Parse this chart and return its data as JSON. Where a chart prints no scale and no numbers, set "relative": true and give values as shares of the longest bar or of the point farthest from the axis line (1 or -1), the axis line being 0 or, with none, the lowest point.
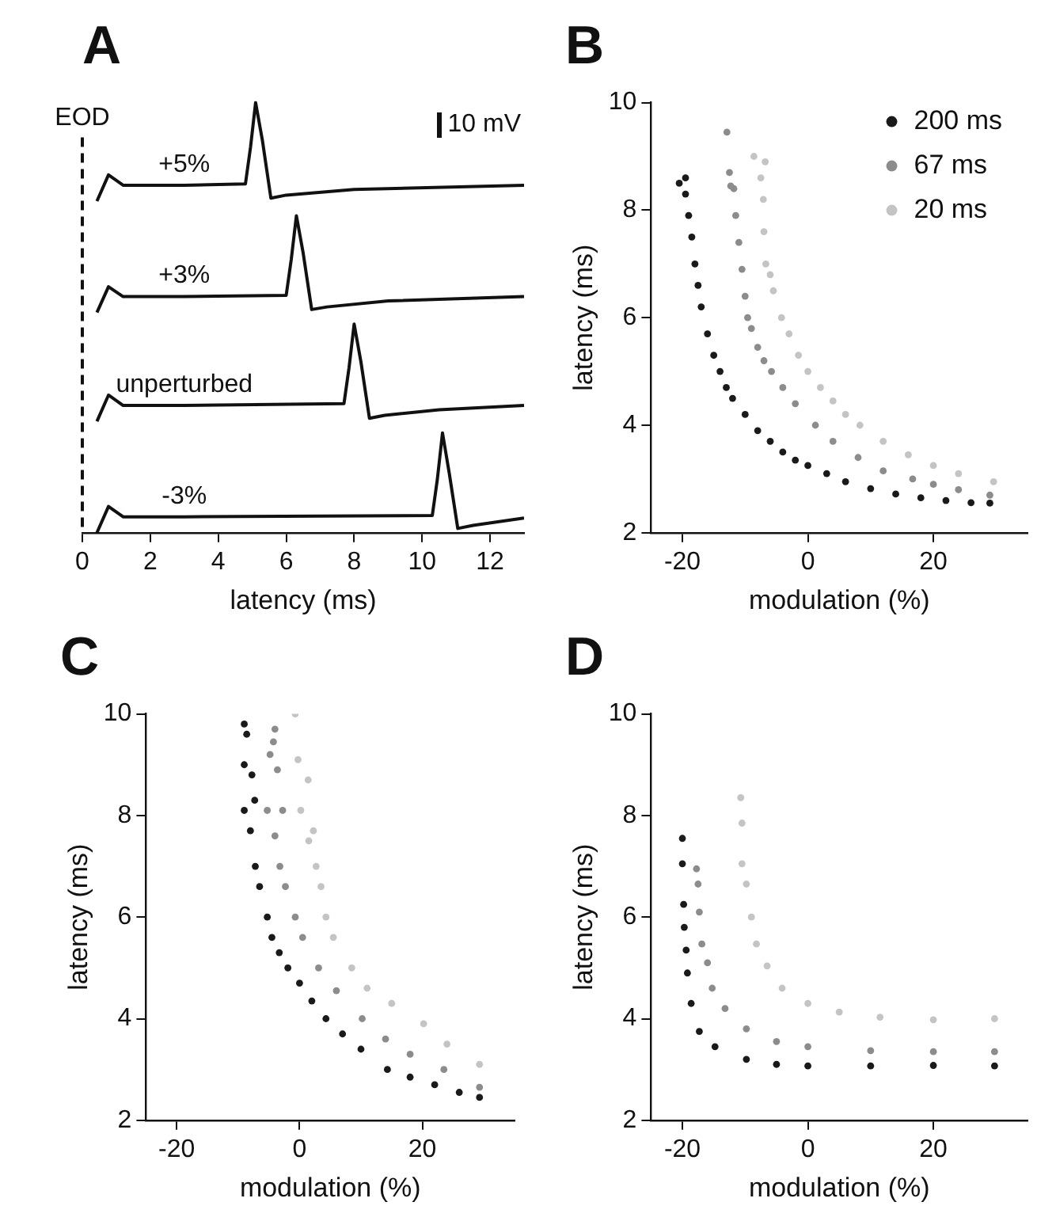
{
  "chart_data": [
    {
      "type": "line",
      "title": "A",
      "xlabel": "latency (ms)",
      "relative": true,
      "tick_labels": "x",
      "legend": false,
      "marker": "none",
      "line_style": "solid",
      "xlim": [
        0,
        13
      ],
      "xticks": [
        0,
        2,
        4,
        6,
        8,
        10,
        12
      ],
      "ref_lines": [
        {
          "axis": "x",
          "value": 0,
          "label": "EOD",
          "line_style": "dashed"
        }
      ],
      "annotations": [
        "10 mV"
      ],
      "series": [
        {
          "name": "+5%",
          "color": "#111111",
          "x": [
            0.43,
            0.77,
            1.2,
            3,
            4.8,
            4.95,
            5.1,
            5.3,
            5.55,
            6,
            8,
            13
          ],
          "values": [
            0.771,
            0.832,
            0.808,
            0.808,
            0.811,
            0.896,
            1,
            0.912,
            0.778,
            0.785,
            0.798,
            0.808
          ]
        },
        {
          "name": "+3%",
          "color": "#111111",
          "x": [
            0.43,
            0.77,
            1.2,
            3,
            6,
            6.15,
            6.3,
            6.5,
            6.75,
            7.2,
            9,
            13
          ],
          "values": [
            0.512,
            0.572,
            0.549,
            0.549,
            0.552,
            0.636,
            0.737,
            0.65,
            0.519,
            0.525,
            0.539,
            0.549
          ]
        },
        {
          "name": "unperturbed",
          "color": "#111111",
          "x": [
            0.43,
            0.77,
            1.2,
            3,
            7.7,
            7.85,
            8,
            8.2,
            8.45,
            8.9,
            10.5,
            13
          ],
          "values": [
            0.259,
            0.32,
            0.296,
            0.296,
            0.3,
            0.384,
            0.485,
            0.397,
            0.266,
            0.273,
            0.286,
            0.296
          ]
        },
        {
          "name": "-3%",
          "color": "#111111",
          "x": [
            0.43,
            0.77,
            1.2,
            3,
            10.3,
            10.45,
            10.6,
            10.8,
            11.05,
            11.5,
            13
          ],
          "values": [
            0,
            0.061,
            0.037,
            0.037,
            0.04,
            0.125,
            0.232,
            0.138,
            0.01,
            0.017,
            0.034
          ]
        }
      ]
    },
    {
      "type": "scatter",
      "title": "B",
      "xlabel": "modulation (%)",
      "ylabel": "latency (ms)",
      "legend": "top right",
      "marker": "circle",
      "xlim": [
        -25,
        35
      ],
      "xticks": [
        -20,
        0,
        20
      ],
      "ylim": [
        2,
        10
      ],
      "yticks": [
        2,
        4,
        6,
        8,
        10
      ],
      "series": [
        {
          "name": "200 ms",
          "color": "#1a1a1a",
          "x": [
            -20.5,
            -19.5,
            -19.5,
            -19,
            -18.5,
            -18,
            -17.5,
            -17,
            -16,
            -15,
            -14,
            -13,
            -12,
            -10,
            -8,
            -6,
            -4,
            -2,
            0,
            3,
            6,
            10,
            14,
            18,
            22,
            26,
            29
          ],
          "values": [
            8.5,
            8.6,
            8.3,
            7.9,
            7.5,
            7.0,
            6.6,
            6.2,
            5.7,
            5.3,
            5.0,
            4.7,
            4.5,
            4.2,
            3.9,
            3.7,
            3.5,
            3.35,
            3.25,
            3.1,
            2.95,
            2.82,
            2.72,
            2.65,
            2.6,
            2.56,
            2.55
          ]
        },
        {
          "name": "67 ms",
          "color": "#8c8c8c",
          "x": [
            -12.9,
            -12.5,
            -12.3,
            -11.8,
            -11.5,
            -11,
            -10.5,
            -10,
            -9.6,
            -9,
            -8,
            -7,
            -5.8,
            -4,
            -2,
            1.2,
            4,
            8,
            12,
            16.7,
            20,
            24,
            29
          ],
          "values": [
            9.45,
            8.7,
            8.45,
            8.4,
            7.9,
            7.4,
            6.9,
            6.4,
            6.0,
            5.8,
            5.45,
            5.2,
            5.0,
            4.7,
            4.4,
            4.0,
            3.7,
            3.4,
            3.15,
            3.0,
            2.9,
            2.8,
            2.7
          ]
        },
        {
          "name": "20 ms",
          "color": "#c4c4c4",
          "x": [
            -8.6,
            -7.5,
            -6.8,
            -7.1,
            -7,
            -6.7,
            -6,
            -5.5,
            -4.2,
            -3,
            -1.5,
            0,
            2,
            4,
            6,
            8.3,
            12,
            16,
            20,
            24,
            29.6
          ],
          "values": [
            9.0,
            8.6,
            8.9,
            8.2,
            7.6,
            7.0,
            6.8,
            6.5,
            6.0,
            5.7,
            5.3,
            5.0,
            4.7,
            4.45,
            4.2,
            4.0,
            3.7,
            3.45,
            3.25,
            3.1,
            2.95
          ]
        }
      ]
    },
    {
      "type": "scatter",
      "title": "C",
      "xlabel": "modulation (%)",
      "ylabel": "latency (ms)",
      "marker": "circle",
      "xlim": [
        -25,
        35
      ],
      "xticks": [
        -20,
        0,
        20
      ],
      "ylim": [
        2,
        10
      ],
      "yticks": [
        2,
        4,
        6,
        8,
        10
      ],
      "series": [
        {
          "color": "#1a1a1a",
          "x": [
            -9,
            -8.6,
            -9,
            -7.75,
            -7.3,
            -9,
            -8,
            -7.2,
            -6.5,
            -5.25,
            -4.5,
            -3.3,
            -1.9,
            0,
            2,
            4.3,
            7,
            10,
            14.3,
            18,
            22,
            26,
            29.3
          ],
          "values": [
            9.8,
            9.6,
            9.0,
            8.8,
            8.3,
            8.1,
            7.7,
            7.0,
            6.6,
            6.0,
            5.6,
            5.3,
            5.0,
            4.7,
            4.35,
            4.0,
            3.7,
            3.4,
            3.0,
            2.85,
            2.7,
            2.55,
            2.45
          ]
        },
        {
          "color": "#8c8c8c",
          "x": [
            -4,
            -4.25,
            -4.8,
            -3.6,
            -5.25,
            -2.75,
            -4,
            -3.2,
            -2.3,
            -0.7,
            0.5,
            3.1,
            6,
            10.2,
            14,
            18,
            23.5,
            29.3
          ],
          "values": [
            9.7,
            9.45,
            9.2,
            8.9,
            8.1,
            8.1,
            7.6,
            7.0,
            6.6,
            6.0,
            5.6,
            5.0,
            4.55,
            4.0,
            3.6,
            3.3,
            3.0,
            2.65
          ]
        },
        {
          "color": "#c4c4c4",
          "x": [
            -0.7,
            -0.25,
            1.4,
            0.2,
            2.25,
            1.5,
            2.7,
            3.5,
            4.3,
            5.5,
            8.5,
            11,
            15,
            20.2,
            24,
            29.3
          ],
          "values": [
            10.0,
            9.1,
            8.7,
            8.1,
            7.7,
            7.5,
            7.0,
            6.6,
            6.0,
            5.6,
            5.0,
            4.6,
            4.3,
            3.9,
            3.5,
            3.1
          ]
        }
      ]
    },
    {
      "type": "scatter",
      "title": "D",
      "xlabel": "modulation (%)",
      "ylabel": "latency (ms)",
      "marker": "circle",
      "xlim": [
        -25,
        35
      ],
      "xticks": [
        -20,
        0,
        20
      ],
      "ylim": [
        2,
        10
      ],
      "yticks": [
        2,
        4,
        6,
        8,
        10
      ],
      "series": [
        {
          "color": "#1a1a1a",
          "x": [
            -20,
            -20,
            -19.8,
            -19.7,
            -19.4,
            -19.2,
            -18.6,
            -17.3,
            -14.8,
            -9.8,
            -5,
            0,
            10,
            20,
            29.75
          ],
          "values": [
            7.55,
            7.05,
            6.25,
            5.8,
            5.35,
            4.9,
            4.3,
            3.75,
            3.45,
            3.2,
            3.1,
            3.07,
            3.07,
            3.08,
            3.07
          ]
        },
        {
          "color": "#8c8c8c",
          "x": [
            -17.75,
            -17.5,
            -17.3,
            -16.9,
            -16,
            -15.25,
            -13.2,
            -9.8,
            -5,
            0,
            10,
            20,
            29.75
          ],
          "values": [
            6.95,
            6.65,
            6.1,
            5.47,
            5.1,
            4.6,
            4.2,
            3.8,
            3.55,
            3.45,
            3.37,
            3.35,
            3.35
          ]
        },
        {
          "color": "#c4c4c4",
          "x": [
            -10.7,
            -10.5,
            -10.5,
            -9.8,
            -9,
            -8.2,
            -6.5,
            -4.1,
            0,
            5,
            11.5,
            20,
            29.75
          ],
          "values": [
            8.35,
            7.85,
            7.05,
            6.65,
            6.0,
            5.47,
            5.04,
            4.6,
            4.3,
            4.13,
            4.03,
            3.98,
            4.0
          ]
        }
      ]
    }
  ]
}
